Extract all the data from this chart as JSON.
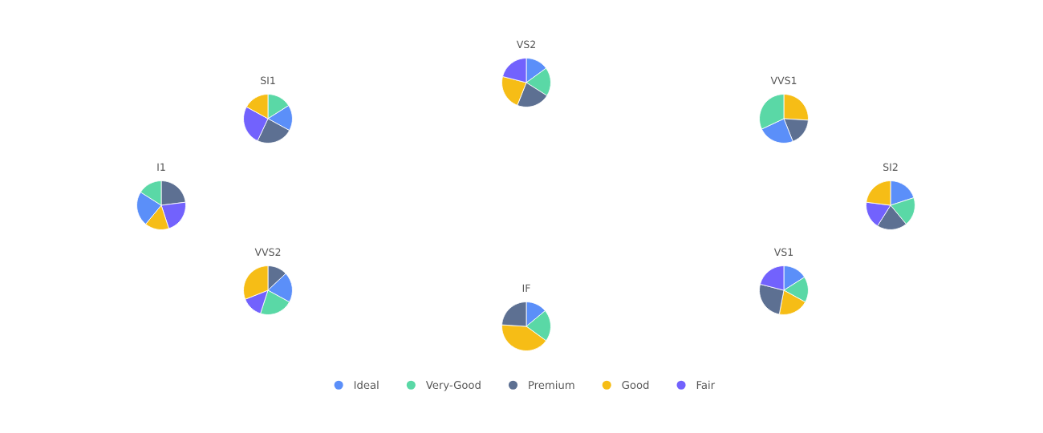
{
  "chart_data": [
    {
      "type": "pie",
      "title": "VS2",
      "categories": [
        "Ideal",
        "Very-Good",
        "Premium",
        "Good",
        "Fair"
      ],
      "values": [
        15,
        19,
        22,
        23,
        21
      ],
      "colors": [
        "#5b8ff9",
        "#5ad8a6",
        "#5d7092",
        "#f6bd16",
        "#7262fd"
      ],
      "legend": "bottom"
    },
    {
      "type": "pie",
      "title": "SI1",
      "categories": [
        null,
        null,
        null,
        null,
        null
      ],
      "values": [
        16,
        17,
        24,
        26,
        17
      ],
      "colors": [
        "#5ad8a6",
        "#5b8ff9",
        "#5d7092",
        "#7262fd",
        "#f6bd16"
      ]
    },
    {
      "type": "pie",
      "title": "VVS1",
      "categories": [
        null,
        null,
        null,
        null
      ],
      "values": [
        26,
        18,
        24,
        32
      ],
      "colors": [
        "#f6bd16",
        "#5d7092",
        "#5b8ff9",
        "#5ad8a6"
      ]
    },
    {
      "type": "pie",
      "title": "I1",
      "categories": [
        null,
        null,
        null,
        null,
        null
      ],
      "values": [
        23,
        22,
        16,
        23,
        16
      ],
      "colors": [
        "#5d7092",
        "#7262fd",
        "#f6bd16",
        "#5b8ff9",
        "#5ad8a6"
      ]
    },
    {
      "type": "pie",
      "title": "SI2",
      "categories": [
        null,
        null,
        null,
        null,
        null
      ],
      "values": [
        20,
        19,
        20,
        18,
        23
      ],
      "colors": [
        "#5b8ff9",
        "#5ad8a6",
        "#5d7092",
        "#7262fd",
        "#f6bd16"
      ]
    },
    {
      "type": "pie",
      "title": "VVS2",
      "categories": [
        null,
        null,
        null,
        null,
        null
      ],
      "values": [
        13,
        20,
        22,
        14,
        31
      ],
      "colors": [
        "#5d7092",
        "#5b8ff9",
        "#5ad8a6",
        "#7262fd",
        "#f6bd16"
      ]
    },
    {
      "type": "pie",
      "title": "VS1",
      "categories": [
        null,
        null,
        null,
        null,
        null
      ],
      "values": [
        16,
        17,
        20,
        26,
        21
      ],
      "colors": [
        "#5b8ff9",
        "#5ad8a6",
        "#f6bd16",
        "#5d7092",
        "#7262fd"
      ]
    },
    {
      "type": "pie",
      "title": "IF",
      "categories": [
        null,
        null,
        null,
        null
      ],
      "values": [
        14,
        21,
        41,
        24
      ],
      "colors": [
        "#5b8ff9",
        "#5ad8a6",
        "#f6bd16",
        "#5d7092"
      ]
    }
  ]
}
